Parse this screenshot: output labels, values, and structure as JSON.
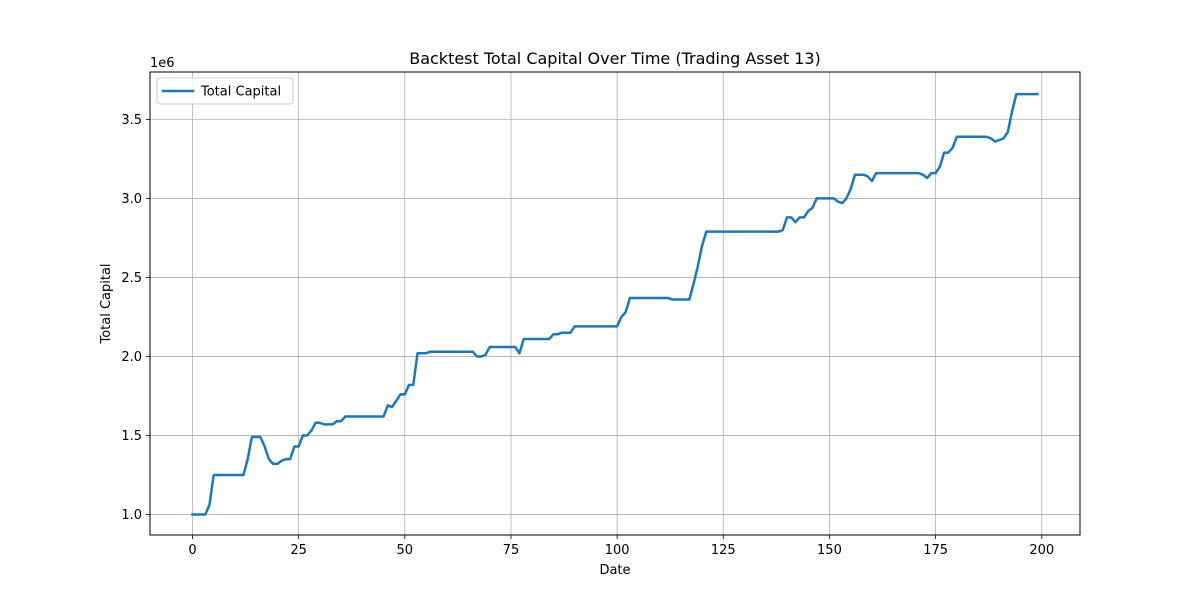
{
  "chart_data": {
    "type": "line",
    "title": "Backtest Total Capital Over Time (Trading Asset 13)",
    "xlabel": "Date",
    "ylabel": "Total Capital",
    "y_scale_label": "1e6",
    "xlim": [
      -10,
      209
    ],
    "ylim": [
      0.87,
      3.8
    ],
    "x_ticks": [
      0,
      25,
      50,
      75,
      100,
      125,
      150,
      175,
      200
    ],
    "x_tick_labels": [
      "0",
      "25",
      "50",
      "75",
      "100",
      "125",
      "150",
      "175",
      "200"
    ],
    "y_ticks": [
      1.0,
      1.5,
      2.0,
      2.5,
      3.0,
      3.5
    ],
    "y_tick_labels": [
      "1.0",
      "1.5",
      "2.0",
      "2.5",
      "3.0",
      "3.5"
    ],
    "grid": true,
    "legend_position": "top-left",
    "series": [
      {
        "name": "Total Capital",
        "color": "#1f77b4",
        "points": [
          [
            0,
            1.0
          ],
          [
            1,
            1.0
          ],
          [
            2,
            1.0
          ],
          [
            3,
            1.0
          ],
          [
            4,
            1.06
          ],
          [
            5,
            1.25
          ],
          [
            6,
            1.25
          ],
          [
            7,
            1.25
          ],
          [
            8,
            1.25
          ],
          [
            9,
            1.25
          ],
          [
            10,
            1.25
          ],
          [
            11,
            1.25
          ],
          [
            12,
            1.25
          ],
          [
            13,
            1.35
          ],
          [
            14,
            1.49
          ],
          [
            15,
            1.49
          ],
          [
            16,
            1.49
          ],
          [
            17,
            1.43
          ],
          [
            18,
            1.35
          ],
          [
            19,
            1.32
          ],
          [
            20,
            1.32
          ],
          [
            21,
            1.34
          ],
          [
            22,
            1.35
          ],
          [
            23,
            1.35
          ],
          [
            24,
            1.43
          ],
          [
            25,
            1.43
          ],
          [
            26,
            1.5
          ],
          [
            27,
            1.5
          ],
          [
            28,
            1.53
          ],
          [
            29,
            1.58
          ],
          [
            30,
            1.58
          ],
          [
            31,
            1.57
          ],
          [
            32,
            1.57
          ],
          [
            33,
            1.57
          ],
          [
            34,
            1.59
          ],
          [
            35,
            1.59
          ],
          [
            36,
            1.62
          ],
          [
            37,
            1.62
          ],
          [
            38,
            1.62
          ],
          [
            39,
            1.62
          ],
          [
            40,
            1.62
          ],
          [
            41,
            1.62
          ],
          [
            42,
            1.62
          ],
          [
            43,
            1.62
          ],
          [
            44,
            1.62
          ],
          [
            45,
            1.62
          ],
          [
            46,
            1.69
          ],
          [
            47,
            1.68
          ],
          [
            48,
            1.72
          ],
          [
            49,
            1.76
          ],
          [
            50,
            1.76
          ],
          [
            51,
            1.82
          ],
          [
            52,
            1.82
          ],
          [
            53,
            2.02
          ],
          [
            54,
            2.02
          ],
          [
            55,
            2.02
          ],
          [
            56,
            2.03
          ],
          [
            57,
            2.03
          ],
          [
            58,
            2.03
          ],
          [
            59,
            2.03
          ],
          [
            60,
            2.03
          ],
          [
            61,
            2.03
          ],
          [
            62,
            2.03
          ],
          [
            63,
            2.03
          ],
          [
            64,
            2.03
          ],
          [
            65,
            2.03
          ],
          [
            66,
            2.03
          ],
          [
            67,
            2.0
          ],
          [
            68,
            2.0
          ],
          [
            69,
            2.01
          ],
          [
            70,
            2.06
          ],
          [
            71,
            2.06
          ],
          [
            72,
            2.06
          ],
          [
            73,
            2.06
          ],
          [
            74,
            2.06
          ],
          [
            75,
            2.06
          ],
          [
            76,
            2.06
          ],
          [
            77,
            2.02
          ],
          [
            78,
            2.11
          ],
          [
            79,
            2.11
          ],
          [
            80,
            2.11
          ],
          [
            81,
            2.11
          ],
          [
            82,
            2.11
          ],
          [
            83,
            2.11
          ],
          [
            84,
            2.11
          ],
          [
            85,
            2.14
          ],
          [
            86,
            2.14
          ],
          [
            87,
            2.15
          ],
          [
            88,
            2.15
          ],
          [
            89,
            2.15
          ],
          [
            90,
            2.19
          ],
          [
            91,
            2.19
          ],
          [
            92,
            2.19
          ],
          [
            93,
            2.19
          ],
          [
            94,
            2.19
          ],
          [
            95,
            2.19
          ],
          [
            96,
            2.19
          ],
          [
            97,
            2.19
          ],
          [
            98,
            2.19
          ],
          [
            99,
            2.19
          ],
          [
            100,
            2.19
          ],
          [
            101,
            2.25
          ],
          [
            102,
            2.28
          ],
          [
            103,
            2.37
          ],
          [
            104,
            2.37
          ],
          [
            105,
            2.37
          ],
          [
            106,
            2.37
          ],
          [
            107,
            2.37
          ],
          [
            108,
            2.37
          ],
          [
            109,
            2.37
          ],
          [
            110,
            2.37
          ],
          [
            111,
            2.37
          ],
          [
            112,
            2.37
          ],
          [
            113,
            2.36
          ],
          [
            114,
            2.36
          ],
          [
            115,
            2.36
          ],
          [
            116,
            2.36
          ],
          [
            117,
            2.36
          ],
          [
            118,
            2.46
          ],
          [
            119,
            2.57
          ],
          [
            120,
            2.7
          ],
          [
            121,
            2.79
          ],
          [
            122,
            2.79
          ],
          [
            123,
            2.79
          ],
          [
            124,
            2.79
          ],
          [
            125,
            2.79
          ],
          [
            126,
            2.79
          ],
          [
            127,
            2.79
          ],
          [
            128,
            2.79
          ],
          [
            129,
            2.79
          ],
          [
            130,
            2.79
          ],
          [
            131,
            2.79
          ],
          [
            132,
            2.79
          ],
          [
            133,
            2.79
          ],
          [
            134,
            2.79
          ],
          [
            135,
            2.79
          ],
          [
            136,
            2.79
          ],
          [
            137,
            2.79
          ],
          [
            138,
            2.79
          ],
          [
            139,
            2.8
          ],
          [
            140,
            2.88
          ],
          [
            141,
            2.88
          ],
          [
            142,
            2.85
          ],
          [
            143,
            2.88
          ],
          [
            144,
            2.88
          ],
          [
            145,
            2.92
          ],
          [
            146,
            2.94
          ],
          [
            147,
            3.0
          ],
          [
            148,
            3.0
          ],
          [
            149,
            3.0
          ],
          [
            150,
            3.0
          ],
          [
            151,
            3.0
          ],
          [
            152,
            2.98
          ],
          [
            153,
            2.97
          ],
          [
            154,
            3.0
          ],
          [
            155,
            3.06
          ],
          [
            156,
            3.15
          ],
          [
            157,
            3.15
          ],
          [
            158,
            3.15
          ],
          [
            159,
            3.14
          ],
          [
            160,
            3.11
          ],
          [
            161,
            3.16
          ],
          [
            162,
            3.16
          ],
          [
            163,
            3.16
          ],
          [
            164,
            3.16
          ],
          [
            165,
            3.16
          ],
          [
            166,
            3.16
          ],
          [
            167,
            3.16
          ],
          [
            168,
            3.16
          ],
          [
            169,
            3.16
          ],
          [
            170,
            3.16
          ],
          [
            171,
            3.16
          ],
          [
            172,
            3.15
          ],
          [
            173,
            3.13
          ],
          [
            174,
            3.16
          ],
          [
            175,
            3.16
          ],
          [
            176,
            3.2
          ],
          [
            177,
            3.29
          ],
          [
            178,
            3.29
          ],
          [
            179,
            3.32
          ],
          [
            180,
            3.39
          ],
          [
            181,
            3.39
          ],
          [
            182,
            3.39
          ],
          [
            183,
            3.39
          ],
          [
            184,
            3.39
          ],
          [
            185,
            3.39
          ],
          [
            186,
            3.39
          ],
          [
            187,
            3.39
          ],
          [
            188,
            3.38
          ],
          [
            189,
            3.36
          ],
          [
            190,
            3.37
          ],
          [
            191,
            3.38
          ],
          [
            192,
            3.42
          ],
          [
            193,
            3.55
          ],
          [
            194,
            3.66
          ],
          [
            195,
            3.66
          ],
          [
            196,
            3.66
          ],
          [
            197,
            3.66
          ],
          [
            198,
            3.66
          ],
          [
            199,
            3.66
          ]
        ]
      }
    ]
  }
}
